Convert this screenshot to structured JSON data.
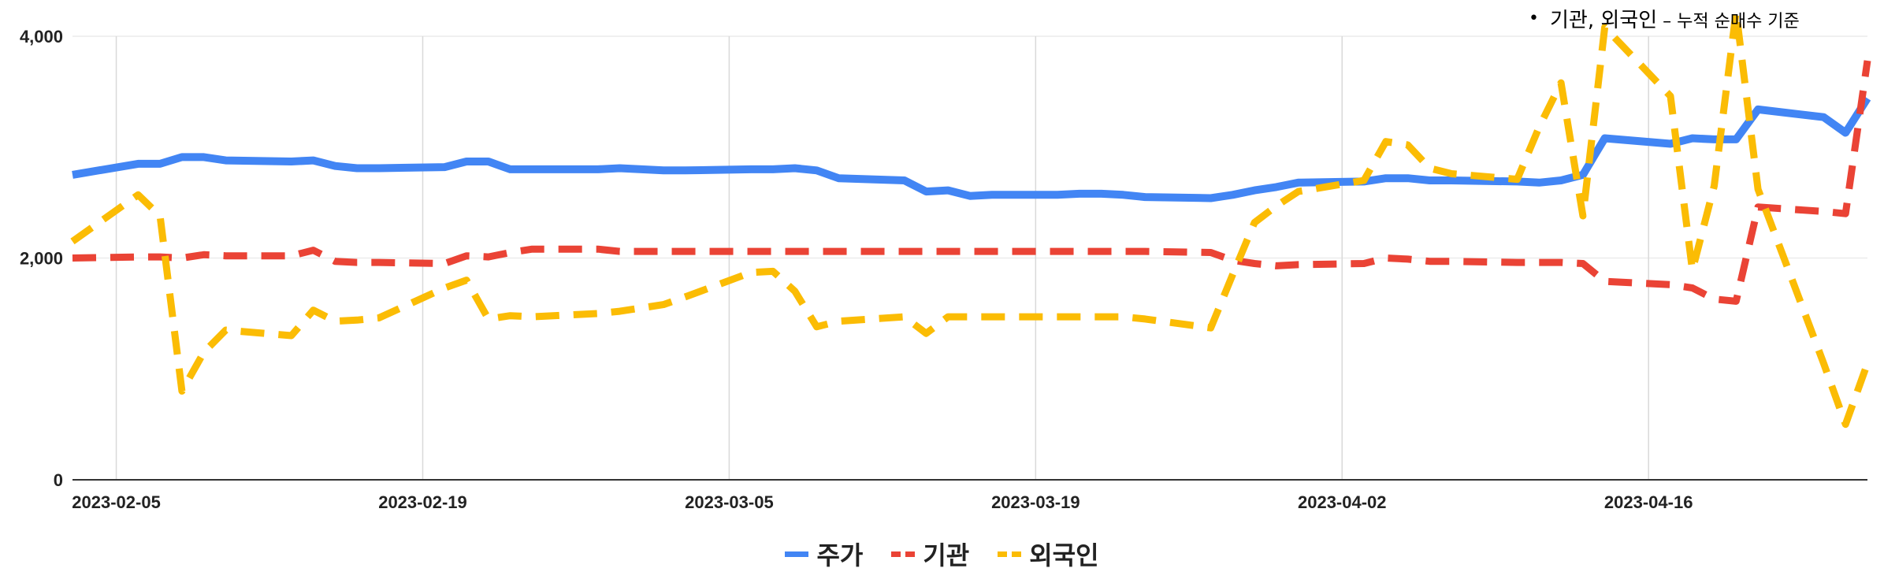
{
  "note": {
    "bullet": "•",
    "main": "기관, 외국인",
    "rest": " – 누적 순매수 기준"
  },
  "chart_data": {
    "type": "line",
    "title": "",
    "xlabel": "",
    "ylabel": "",
    "ylim": [
      0,
      4000
    ],
    "yticks": [
      0,
      2000,
      4000
    ],
    "ytick_labels": [
      "0",
      "2,000",
      "4,000"
    ],
    "xticks": [
      "2023-02-05",
      "2023-02-19",
      "2023-03-05",
      "2023-03-19",
      "2023-04-02",
      "2023-04-16"
    ],
    "xlim": [
      "2023-02-03",
      "2023-04-26"
    ],
    "grid": true,
    "legend_position": "bottom",
    "series": [
      {
        "name": "주가",
        "color": "#4285f4",
        "dashed": false,
        "x": [
          "2023-02-03",
          "2023-02-06",
          "2023-02-07",
          "2023-02-08",
          "2023-02-09",
          "2023-02-10",
          "2023-02-13",
          "2023-02-14",
          "2023-02-15",
          "2023-02-16",
          "2023-02-17",
          "2023-02-20",
          "2023-02-21",
          "2023-02-22",
          "2023-02-23",
          "2023-02-24",
          "2023-02-27",
          "2023-02-28",
          "2023-03-02",
          "2023-03-03",
          "2023-03-06",
          "2023-03-07",
          "2023-03-08",
          "2023-03-09",
          "2023-03-10",
          "2023-03-13",
          "2023-03-14",
          "2023-03-15",
          "2023-03-16",
          "2023-03-17",
          "2023-03-20",
          "2023-03-21",
          "2023-03-22",
          "2023-03-23",
          "2023-03-24",
          "2023-03-27",
          "2023-03-28",
          "2023-03-29",
          "2023-03-30",
          "2023-03-31",
          "2023-04-03",
          "2023-04-04",
          "2023-04-05",
          "2023-04-06",
          "2023-04-07",
          "2023-04-10",
          "2023-04-11",
          "2023-04-12",
          "2023-04-13",
          "2023-04-14",
          "2023-04-17",
          "2023-04-18",
          "2023-04-19",
          "2023-04-20",
          "2023-04-21",
          "2023-04-24",
          "2023-04-25",
          "2023-04-26"
        ],
        "values": [
          2750,
          2850,
          2850,
          2910,
          2910,
          2880,
          2870,
          2880,
          2830,
          2810,
          2810,
          2820,
          2870,
          2870,
          2800,
          2800,
          2800,
          2810,
          2790,
          2790,
          2800,
          2800,
          2810,
          2790,
          2720,
          2700,
          2600,
          2610,
          2560,
          2570,
          2570,
          2580,
          2580,
          2570,
          2550,
          2540,
          2570,
          2610,
          2640,
          2680,
          2690,
          2720,
          2720,
          2700,
          2700,
          2690,
          2680,
          2700,
          2750,
          3080,
          3030,
          3080,
          3070,
          3070,
          3340,
          3270,
          3130,
          3440
        ]
      },
      {
        "name": "기관",
        "color": "#ea4335",
        "dashed": true,
        "x": [
          "2023-02-03",
          "2023-02-06",
          "2023-02-07",
          "2023-02-08",
          "2023-02-09",
          "2023-02-10",
          "2023-02-13",
          "2023-02-14",
          "2023-02-15",
          "2023-02-16",
          "2023-02-17",
          "2023-02-20",
          "2023-02-21",
          "2023-02-22",
          "2023-02-23",
          "2023-02-24",
          "2023-02-27",
          "2023-02-28",
          "2023-03-02",
          "2023-03-03",
          "2023-03-06",
          "2023-03-07",
          "2023-03-08",
          "2023-03-09",
          "2023-03-10",
          "2023-03-13",
          "2023-03-14",
          "2023-03-15",
          "2023-03-16",
          "2023-03-17",
          "2023-03-20",
          "2023-03-21",
          "2023-03-22",
          "2023-03-23",
          "2023-03-24",
          "2023-03-27",
          "2023-03-28",
          "2023-03-29",
          "2023-03-30",
          "2023-03-31",
          "2023-04-03",
          "2023-04-04",
          "2023-04-05",
          "2023-04-06",
          "2023-04-07",
          "2023-04-10",
          "2023-04-11",
          "2023-04-12",
          "2023-04-13",
          "2023-04-14",
          "2023-04-17",
          "2023-04-18",
          "2023-04-19",
          "2023-04-20",
          "2023-04-21",
          "2023-04-24",
          "2023-04-25",
          "2023-04-26"
        ],
        "values": [
          2000,
          2010,
          2010,
          2000,
          2030,
          2020,
          2020,
          2070,
          1970,
          1960,
          1960,
          1950,
          2020,
          2010,
          2050,
          2080,
          2080,
          2060,
          2060,
          2060,
          2060,
          2060,
          2060,
          2060,
          2060,
          2060,
          2060,
          2060,
          2060,
          2060,
          2060,
          2060,
          2060,
          2060,
          2060,
          2050,
          1980,
          1950,
          1930,
          1940,
          1950,
          2000,
          1990,
          1970,
          1970,
          1960,
          1960,
          1960,
          1950,
          1790,
          1760,
          1730,
          1630,
          1610,
          2460,
          2420,
          2400,
          3780
        ]
      },
      {
        "name": "외국인",
        "color": "#fbbc04",
        "dashed": true,
        "x": [
          "2023-02-03",
          "2023-02-06",
          "2023-02-07",
          "2023-02-08",
          "2023-02-09",
          "2023-02-10",
          "2023-02-13",
          "2023-02-14",
          "2023-02-15",
          "2023-02-16",
          "2023-02-17",
          "2023-02-20",
          "2023-02-21",
          "2023-02-22",
          "2023-02-23",
          "2023-02-24",
          "2023-02-27",
          "2023-02-28",
          "2023-03-02",
          "2023-03-03",
          "2023-03-06",
          "2023-03-07",
          "2023-03-08",
          "2023-03-09",
          "2023-03-10",
          "2023-03-13",
          "2023-03-14",
          "2023-03-15",
          "2023-03-16",
          "2023-03-17",
          "2023-03-20",
          "2023-03-21",
          "2023-03-22",
          "2023-03-23",
          "2023-03-24",
          "2023-03-27",
          "2023-03-28",
          "2023-03-29",
          "2023-03-30",
          "2023-03-31",
          "2023-04-03",
          "2023-04-04",
          "2023-04-05",
          "2023-04-06",
          "2023-04-07",
          "2023-04-10",
          "2023-04-11",
          "2023-04-12",
          "2023-04-13",
          "2023-04-14",
          "2023-04-17",
          "2023-04-18",
          "2023-04-19",
          "2023-04-20",
          "2023-04-21",
          "2023-04-24",
          "2023-04-25",
          "2023-04-26"
        ],
        "values": [
          2150,
          2570,
          2380,
          800,
          1150,
          1350,
          1300,
          1530,
          1430,
          1440,
          1460,
          1730,
          1800,
          1450,
          1480,
          1470,
          1500,
          1520,
          1580,
          1650,
          1870,
          1880,
          1700,
          1380,
          1430,
          1470,
          1320,
          1470,
          1470,
          1470,
          1470,
          1470,
          1470,
          1470,
          1450,
          1370,
          1850,
          2320,
          2470,
          2600,
          2700,
          3050,
          3020,
          2810,
          2760,
          2710,
          3180,
          3580,
          2380,
          4080,
          3460,
          1890,
          2650,
          4220,
          2620,
          1050,
          500,
          1050
        ]
      }
    ]
  }
}
